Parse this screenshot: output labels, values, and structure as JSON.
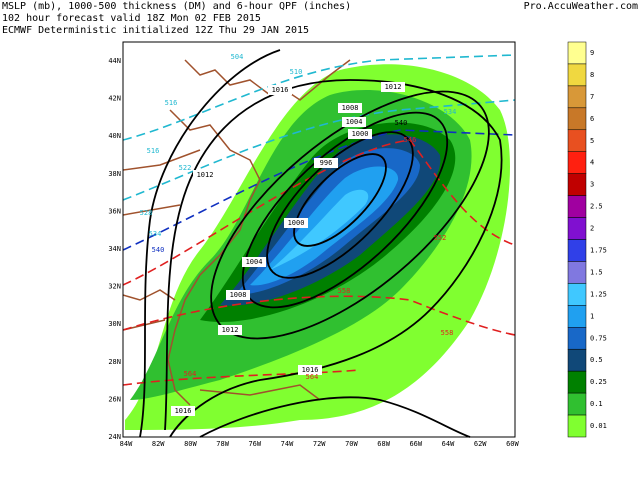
{
  "header": {
    "lines": [
      "MSLP (mb), 1000-500 thickness (DM) and 6-hour QPF (inches)",
      "102 hour forecast valid 18Z Mon 02 FEB 2015",
      "ECMWF Deterministic initialized 12Z Thu 29 JAN 2015"
    ],
    "source": "Pro.AccuWeather.com"
  },
  "map": {
    "lat_labels": [
      "44N",
      "42N",
      "40N",
      "38N",
      "36N",
      "34N",
      "32N",
      "30N",
      "28N",
      "26N",
      "24N"
    ],
    "lon_labels": [
      "84W",
      "82W",
      "80W",
      "78W",
      "76W",
      "74W",
      "72W",
      "70W",
      "68W",
      "66W",
      "64W",
      "62W",
      "60W"
    ],
    "isobar_labels": [
      "1016",
      "1012",
      "1008",
      "1004",
      "1000",
      "996",
      "1000",
      "1004",
      "1008",
      "1012",
      "1012",
      "1016",
      "1016"
    ],
    "thickness_labels": [
      {
        "text": "504",
        "color": "#20b8d0"
      },
      {
        "text": "510",
        "color": "#20b8d0"
      },
      {
        "text": "516",
        "color": "#20b8d0"
      },
      {
        "text": "534",
        "color": "#20b8d0"
      },
      {
        "text": "516",
        "color": "#20b8d0"
      },
      {
        "text": "522",
        "color": "#20b8d0"
      },
      {
        "text": "528",
        "color": "#20b8d0"
      },
      {
        "text": "534",
        "color": "#20b8d0"
      },
      {
        "text": "540",
        "color": "#1030c0"
      },
      {
        "text": "540",
        "color": "#000000"
      },
      {
        "text": "546",
        "color": "#e02020"
      },
      {
        "text": "552",
        "color": "#e02020"
      },
      {
        "text": "558",
        "color": "#e02020"
      },
      {
        "text": "558",
        "color": "#e02020"
      },
      {
        "text": "564",
        "color": "#e02020"
      },
      {
        "text": "564",
        "color": "#e02020"
      }
    ]
  },
  "legend": {
    "items": [
      {
        "label": "9",
        "color": "#ffff90"
      },
      {
        "label": "8",
        "color": "#f0d840"
      },
      {
        "label": "7",
        "color": "#d89838"
      },
      {
        "label": "6",
        "color": "#c87828"
      },
      {
        "label": "5",
        "color": "#e85020"
      },
      {
        "label": "4",
        "color": "#ff2010"
      },
      {
        "label": "3",
        "color": "#c00000"
      },
      {
        "label": "2.5",
        "color": "#a000a0"
      },
      {
        "label": "2",
        "color": "#8010d0"
      },
      {
        "label": "1.75",
        "color": "#3040e8"
      },
      {
        "label": "1.5",
        "color": "#8078e0"
      },
      {
        "label": "1.25",
        "color": "#40c8ff"
      },
      {
        "label": "1",
        "color": "#20a0f0"
      },
      {
        "label": "0.75",
        "color": "#1868c8"
      },
      {
        "label": "0.5",
        "color": "#104878"
      },
      {
        "label": "0.25",
        "color": "#008000"
      },
      {
        "label": "0.1",
        "color": "#30c030"
      },
      {
        "label": "0.01",
        "color": "#80ff30"
      }
    ]
  }
}
